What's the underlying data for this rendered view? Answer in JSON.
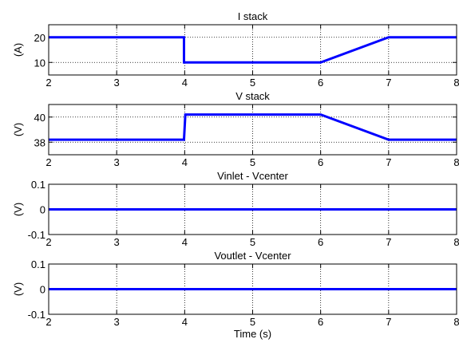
{
  "chart_data": [
    {
      "type": "line",
      "title": "I stack",
      "ylabel": "(A)",
      "xlabel": "",
      "xlim": [
        2,
        8
      ],
      "ylim": [
        5,
        25
      ],
      "xticks": [
        "2",
        "3",
        "4",
        "5",
        "6",
        "7",
        "8"
      ],
      "yticks": [
        10,
        20
      ],
      "ytick_labels": [
        "10",
        "20"
      ],
      "grid": true,
      "series": [
        {
          "color": "#0000ff",
          "x": [
            2,
            3.99,
            3.99,
            6,
            7,
            8
          ],
          "y": [
            20,
            20,
            10,
            10,
            20,
            20
          ]
        }
      ]
    },
    {
      "type": "line",
      "title": "V stack",
      "ylabel": "(V)",
      "xlabel": "",
      "xlim": [
        2,
        8
      ],
      "ylim": [
        37,
        41
      ],
      "xticks": [
        "2",
        "3",
        "4",
        "5",
        "6",
        "7",
        "8"
      ],
      "yticks": [
        38,
        40
      ],
      "ytick_labels": [
        "38",
        "40"
      ],
      "grid": true,
      "series": [
        {
          "color": "#0000ff",
          "x": [
            2,
            3.99,
            4.01,
            6,
            7,
            8
          ],
          "y": [
            38.2,
            38.2,
            40.2,
            40.2,
            38.2,
            38.2
          ]
        }
      ]
    },
    {
      "type": "line",
      "title": "Vinlet - Vcenter",
      "ylabel": "(V)",
      "xlabel": "",
      "xlim": [
        2,
        8
      ],
      "ylim": [
        -0.1,
        0.1
      ],
      "xticks": [
        "2",
        "3",
        "4",
        "5",
        "6",
        "7",
        "8"
      ],
      "yticks": [
        -0.1,
        0,
        0.1
      ],
      "ytick_labels": [
        "-0.1",
        "0",
        "0.1"
      ],
      "grid": true,
      "series": [
        {
          "color": "#0000ff",
          "x": [
            2,
            8
          ],
          "y": [
            0,
            0
          ]
        }
      ]
    },
    {
      "type": "line",
      "title": "Voutlet - Vcenter",
      "ylabel": "(V)",
      "xlabel": "Time (s)",
      "xlim": [
        2,
        8
      ],
      "ylim": [
        -0.1,
        0.1
      ],
      "xticks": [
        "2",
        "3",
        "4",
        "5",
        "6",
        "7",
        "8"
      ],
      "yticks": [
        -0.1,
        0,
        0.1
      ],
      "ytick_labels": [
        "-0.1",
        "0",
        "0.1"
      ],
      "grid": true,
      "series": [
        {
          "color": "#0000ff",
          "x": [
            2,
            8
          ],
          "y": [
            0,
            0
          ]
        }
      ]
    }
  ]
}
